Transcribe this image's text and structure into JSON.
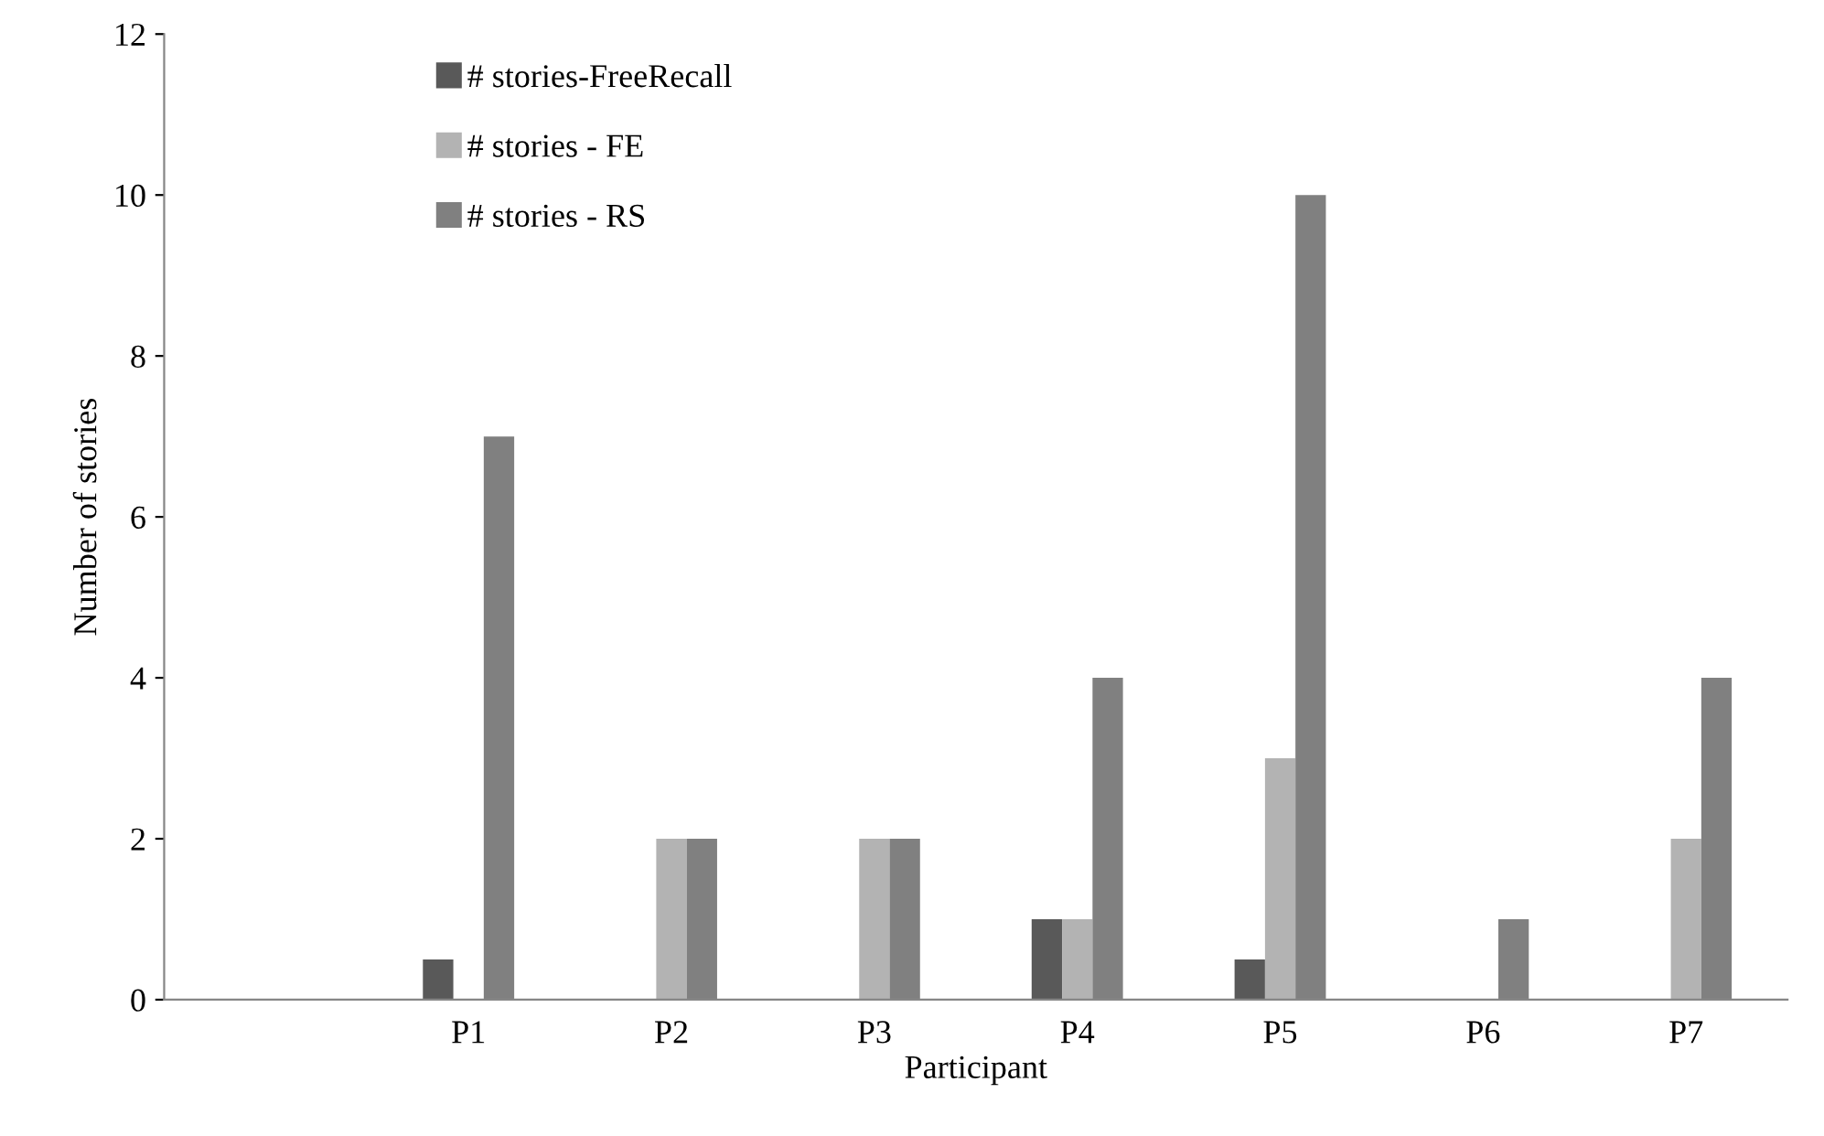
{
  "chart_data": {
    "type": "bar",
    "xlabel": "Participant",
    "ylabel": "Number of stories",
    "categories": [
      null,
      "P1",
      "P2",
      "P3",
      "P4",
      "P5",
      "P6",
      "P7"
    ],
    "series": [
      {
        "name": "# stories-FreeRecall",
        "color": "#595959",
        "values": [
          null,
          0.5,
          0,
          0,
          1,
          0.5,
          0,
          0
        ]
      },
      {
        "name": "# stories - FE",
        "color": "#b3b3b3",
        "values": [
          null,
          0,
          2,
          2,
          1,
          3,
          0,
          2
        ]
      },
      {
        "name": "# stories - RS",
        "color": "#808080",
        "values": [
          null,
          7,
          2,
          2,
          4,
          10,
          1,
          4
        ]
      }
    ],
    "ylim": [
      0,
      12
    ],
    "yticks": [
      0,
      2,
      4,
      6,
      8,
      10,
      12
    ],
    "grid": false,
    "legend": "top left"
  }
}
